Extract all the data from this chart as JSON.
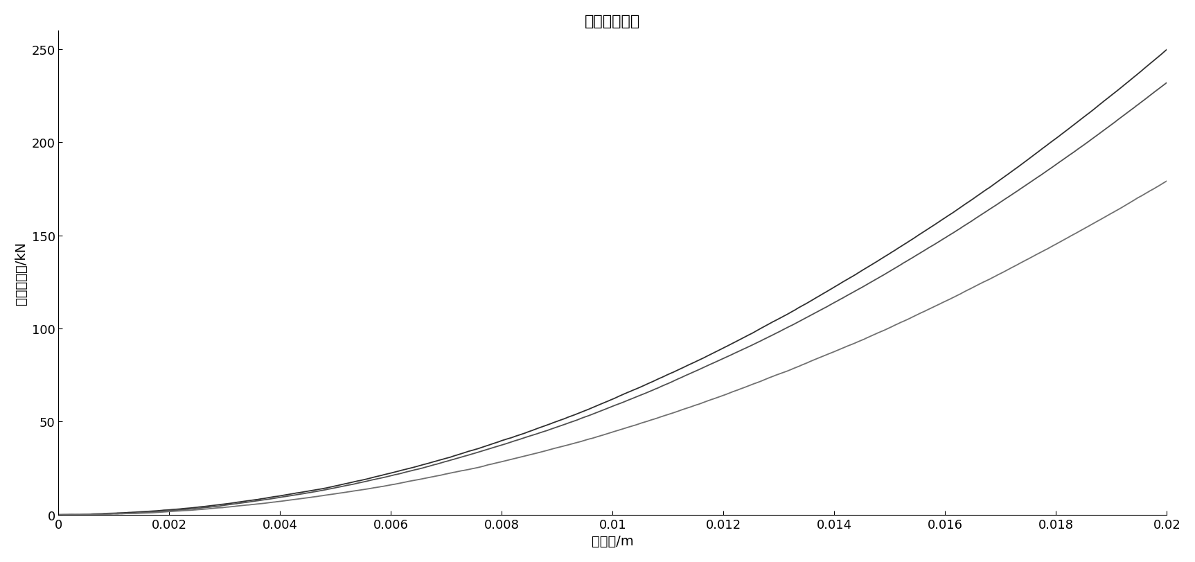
{
  "title": "弹性系数曲线",
  "xlabel": "变形量/m",
  "ylabel": "弹性恢复力/kN",
  "xlim": [
    0,
    0.02
  ],
  "ylim": [
    0,
    260
  ],
  "xticks": [
    0,
    0.002,
    0.004,
    0.006,
    0.008,
    0.01,
    0.012,
    0.014,
    0.016,
    0.018,
    0.02
  ],
  "yticks": [
    0,
    50,
    100,
    150,
    200,
    250
  ],
  "curve1_color": "#303030",
  "curve2_color": "#505050",
  "curve3_color": "#707070",
  "linewidth": 1.3,
  "background_color": "#ffffff",
  "title_fontsize": 16,
  "label_fontsize": 14,
  "tick_fontsize": 13,
  "curve1_scale": 625000,
  "curve1_exp": 2.0,
  "curve2_scale": 580000,
  "curve2_exp": 2.0,
  "curve3_scale": 450000,
  "curve3_exp": 2.0,
  "noise_seed": 42,
  "noise_amplitude": 1.5
}
